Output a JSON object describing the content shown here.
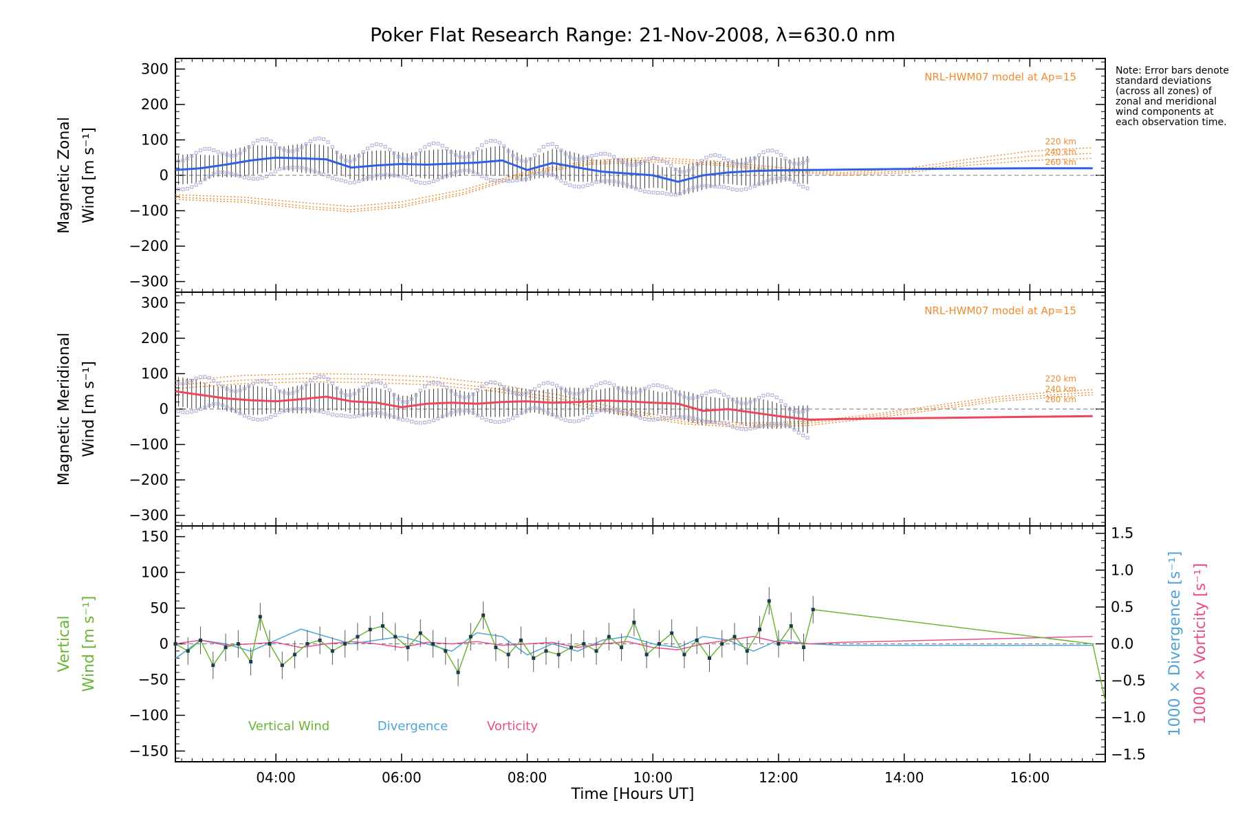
{
  "title": "Poker Flat Research Range: 21-Nov-2008, λ=630.0 nm",
  "note": "Note: Error bars denote standard deviations (across all zones) of zonal and meridional wind components at each observation time.",
  "xlabel": "Time [Hours UT]",
  "colors": {
    "zonal": "#2f5fe6",
    "meridional": "#f0445a",
    "vertical": "#68b534",
    "divergence": "#4fa3d6",
    "vorticity": "#ee4a8c",
    "model": "#f08a2c",
    "scatter": "#aaaad8"
  },
  "chart_data": [
    {
      "type": "line",
      "panel": "zonal",
      "ylabel_line1": "Magnetic Zonal",
      "ylabel_line2": "Wind [m s⁻¹]",
      "xlim": [
        2.4,
        17.2
      ],
      "ylim": [
        -330,
        330
      ],
      "x_ticks": [
        "04:00",
        "06:00",
        "08:00",
        "10:00",
        "12:00",
        "14:00",
        "16:00"
      ],
      "y_ticks": [
        -300,
        -200,
        -100,
        0,
        100,
        200,
        300
      ],
      "model_label": "NRL-HWM07 model at Ap=15",
      "model_curves": [
        {
          "name": "220 km",
          "x": [
            2.4,
            3.5,
            4.5,
            5.2,
            6,
            7,
            8,
            9,
            10,
            11,
            12,
            13,
            14,
            15,
            16,
            17
          ],
          "y": [
            -55,
            -62,
            -78,
            -88,
            -75,
            -40,
            10,
            42,
            50,
            40,
            22,
            8,
            18,
            45,
            68,
            78
          ]
        },
        {
          "name": "240 km",
          "x": [
            2.4,
            3.5,
            4.5,
            5.2,
            6,
            7,
            8,
            9,
            10,
            11,
            12,
            13,
            14,
            15,
            16,
            17
          ],
          "y": [
            -62,
            -70,
            -88,
            -97,
            -84,
            -48,
            6,
            36,
            44,
            34,
            16,
            4,
            12,
            36,
            54,
            62
          ]
        },
        {
          "name": "260 km",
          "x": [
            2.4,
            3.5,
            4.5,
            5.2,
            6,
            7,
            8,
            9,
            10,
            11,
            12,
            13,
            14,
            15,
            16,
            17
          ],
          "y": [
            -68,
            -76,
            -94,
            -103,
            -90,
            -53,
            2,
            31,
            38,
            29,
            12,
            0,
            7,
            28,
            42,
            48
          ]
        }
      ],
      "series": [
        {
          "name": "Magnetic Zonal Wind",
          "x": [
            2.4,
            2.8,
            3.2,
            3.6,
            4.0,
            4.4,
            4.8,
            5.2,
            5.6,
            6.0,
            6.4,
            6.8,
            7.2,
            7.6,
            8.0,
            8.4,
            8.8,
            9.2,
            9.6,
            10.0,
            10.4,
            10.8,
            11.2,
            11.6,
            12.0,
            12.5,
            13.0,
            14.0,
            15.0,
            16.0,
            17.0
          ],
          "y": [
            15,
            20,
            30,
            42,
            50,
            48,
            45,
            22,
            28,
            32,
            30,
            33,
            36,
            42,
            15,
            35,
            22,
            10,
            5,
            0,
            -18,
            0,
            8,
            12,
            14,
            15,
            16,
            18,
            19,
            20,
            20
          ]
        }
      ]
    },
    {
      "type": "line",
      "panel": "meridional",
      "ylabel_line1": "Magnetic Meridional",
      "ylabel_line2": "Wind [m s⁻¹]",
      "xlim": [
        2.4,
        17.2
      ],
      "ylim": [
        -330,
        330
      ],
      "x_ticks": [
        "04:00",
        "06:00",
        "08:00",
        "10:00",
        "12:00",
        "14:00",
        "16:00"
      ],
      "y_ticks": [
        -300,
        -200,
        -100,
        0,
        100,
        200,
        300
      ],
      "model_label": "NRL-HWM07 model at Ap=15",
      "model_curves": [
        {
          "name": "220 km",
          "x": [
            2.4,
            3.5,
            4.5,
            5.5,
            6.5,
            7.5,
            8.5,
            9.5,
            10.5,
            11.5,
            12.5,
            13.5,
            14.5,
            15.5,
            16.5,
            17
          ],
          "y": [
            80,
            95,
            100,
            98,
            90,
            70,
            40,
            0,
            -30,
            -40,
            -35,
            -15,
            10,
            35,
            50,
            55
          ]
        },
        {
          "name": "240 km",
          "x": [
            2.4,
            3.5,
            4.5,
            5.5,
            6.5,
            7.5,
            8.5,
            9.5,
            10.5,
            11.5,
            12.5,
            13.5,
            14.5,
            15.5,
            16.5,
            17
          ],
          "y": [
            68,
            82,
            87,
            85,
            78,
            58,
            30,
            -8,
            -36,
            -46,
            -40,
            -20,
            4,
            28,
            42,
            47
          ]
        },
        {
          "name": "260 km",
          "x": [
            2.4,
            3.5,
            4.5,
            5.5,
            6.5,
            7.5,
            8.5,
            9.5,
            10.5,
            11.5,
            12.5,
            13.5,
            14.5,
            15.5,
            16.5,
            17
          ],
          "y": [
            58,
            72,
            77,
            75,
            68,
            50,
            22,
            -14,
            -42,
            -52,
            -46,
            -26,
            -2,
            22,
            35,
            40
          ]
        }
      ],
      "series": [
        {
          "name": "Magnetic Meridional Wind",
          "x": [
            2.4,
            2.8,
            3.2,
            3.6,
            4.0,
            4.4,
            4.8,
            5.2,
            5.6,
            6.0,
            6.4,
            6.8,
            7.2,
            7.6,
            8.0,
            8.4,
            8.8,
            9.2,
            9.6,
            10.0,
            10.4,
            10.8,
            11.2,
            11.6,
            12.0,
            12.5,
            13.0,
            14.0,
            15.0,
            16.0,
            17.0
          ],
          "y": [
            50,
            40,
            30,
            25,
            22,
            28,
            35,
            22,
            18,
            5,
            15,
            18,
            15,
            20,
            22,
            18,
            20,
            24,
            22,
            18,
            15,
            -5,
            0,
            -10,
            -20,
            -30,
            -28,
            -26,
            -24,
            -22,
            -20
          ]
        }
      ]
    },
    {
      "type": "line",
      "panel": "vertical",
      "ylabel_line1": "Vertical",
      "ylabel_line2": "Wind [m s⁻¹]",
      "y2label_div": "1000 × Divergence [s⁻¹]",
      "y2label_vort": "1000 × Vorticity [s⁻¹]",
      "xlim": [
        2.4,
        17.2
      ],
      "ylim": [
        -165,
        165
      ],
      "y2lim": [
        -1.6,
        1.6
      ],
      "x_ticks": [
        "04:00",
        "06:00",
        "08:00",
        "10:00",
        "12:00",
        "14:00",
        "16:00"
      ],
      "y_ticks": [
        -150,
        -100,
        -50,
        0,
        50,
        100,
        150
      ],
      "y2_ticks": [
        "-1.5",
        "-1.0",
        "-0.5",
        "0.0",
        "0.5",
        "1.0",
        "1.5"
      ],
      "legend": [
        "Vertical Wind",
        "Divergence",
        "Vorticity"
      ],
      "series": [
        {
          "name": "Vertical Wind",
          "x": [
            2.4,
            2.6,
            2.8,
            3.0,
            3.2,
            3.4,
            3.6,
            3.75,
            3.9,
            4.1,
            4.3,
            4.5,
            4.7,
            4.9,
            5.1,
            5.3,
            5.5,
            5.7,
            5.9,
            6.1,
            6.3,
            6.5,
            6.7,
            6.9,
            7.1,
            7.3,
            7.5,
            7.7,
            7.9,
            8.1,
            8.3,
            8.5,
            8.7,
            8.9,
            9.1,
            9.3,
            9.5,
            9.7,
            9.9,
            10.1,
            10.3,
            10.5,
            10.7,
            10.9,
            11.1,
            11.3,
            11.5,
            11.7,
            11.85,
            12.0,
            12.2,
            12.4,
            12.55,
            17.0,
            17.2
          ],
          "y": [
            0,
            -10,
            5,
            -30,
            -5,
            0,
            -25,
            38,
            0,
            -30,
            -15,
            0,
            5,
            -10,
            0,
            10,
            20,
            25,
            10,
            -5,
            15,
            0,
            -10,
            -40,
            10,
            40,
            -5,
            -15,
            5,
            -20,
            -10,
            -15,
            -5,
            0,
            -10,
            10,
            -5,
            30,
            -15,
            0,
            15,
            -15,
            5,
            -20,
            0,
            10,
            -10,
            20,
            60,
            0,
            25,
            -5,
            48,
            0,
            -80
          ]
        },
        {
          "name": "Divergence",
          "x": [
            2.4,
            2.8,
            3.2,
            3.6,
            4.0,
            4.4,
            4.8,
            5.2,
            5.6,
            6.0,
            6.4,
            6.8,
            7.2,
            7.6,
            8.0,
            8.4,
            8.8,
            9.2,
            9.6,
            10.0,
            10.4,
            10.8,
            11.2,
            11.6,
            12.0,
            12.5,
            13.0,
            14.0,
            15.0,
            16.0,
            17.0
          ],
          "y": [
            -0.2,
            0.05,
            0.0,
            -0.1,
            0.05,
            0.2,
            0.1,
            0.0,
            0.05,
            0.1,
            0.0,
            -0.1,
            0.15,
            0.1,
            -0.15,
            0.0,
            -0.1,
            0.05,
            0.1,
            0.0,
            -0.05,
            0.1,
            0.05,
            -0.1,
            0.05,
            0.0,
            -0.02,
            -0.02,
            -0.02,
            -0.02,
            -0.02
          ]
        },
        {
          "name": "Vorticity",
          "x": [
            2.4,
            2.8,
            3.2,
            3.6,
            4.0,
            4.4,
            4.8,
            5.2,
            5.6,
            6.0,
            6.4,
            6.8,
            7.2,
            7.6,
            8.0,
            8.4,
            8.8,
            9.2,
            9.6,
            10.0,
            10.4,
            10.8,
            11.2,
            11.6,
            12.0,
            12.5,
            13.0,
            14.0,
            15.0,
            16.0,
            17.0
          ],
          "y": [
            0.0,
            0.05,
            -0.02,
            0.0,
            0.02,
            -0.05,
            0.0,
            0.03,
            0.0,
            -0.05,
            0.02,
            0.0,
            0.03,
            -0.02,
            0.0,
            0.02,
            -0.05,
            0.0,
            0.03,
            -0.05,
            -0.08,
            0.0,
            0.05,
            0.1,
            0.02,
            0.0,
            0.02,
            0.04,
            0.06,
            0.08,
            0.1
          ]
        }
      ]
    }
  ]
}
